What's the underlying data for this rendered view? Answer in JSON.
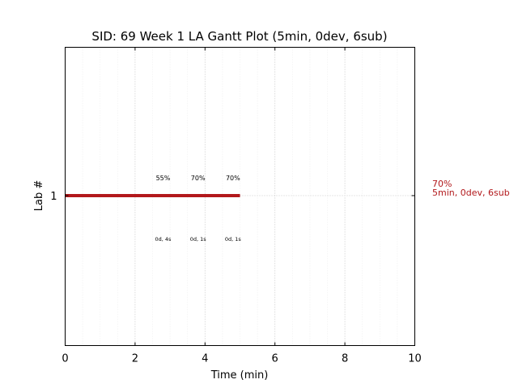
{
  "chart_data": {
    "type": "gantt",
    "title": "SID: 69 Week 1 LA Gantt Plot (5min, 0dev, 6sub)",
    "xlabel": "Time (min)",
    "ylabel": "Lab #",
    "xlim": [
      0,
      10
    ],
    "x_ticks": [
      "0",
      "2",
      "4",
      "6",
      "8",
      "10"
    ],
    "y_ticks": [
      "1"
    ],
    "grid": true,
    "colors": {
      "bar": "#b2181b",
      "side_label": "#b2181b",
      "grid": "#bbbbbb"
    },
    "bars": [
      {
        "lab": "1",
        "start": 0,
        "end": 5
      }
    ],
    "annotations": [
      {
        "x": 2.8,
        "top": "55%",
        "bottom": "0d, 4s"
      },
      {
        "x": 3.8,
        "top": "70%",
        "bottom": "0d, 1s"
      },
      {
        "x": 4.8,
        "top": "70%",
        "bottom": "0d, 1s"
      }
    ],
    "side_label": {
      "line1": "70%",
      "line2": "5min, 0dev, 6sub"
    }
  }
}
